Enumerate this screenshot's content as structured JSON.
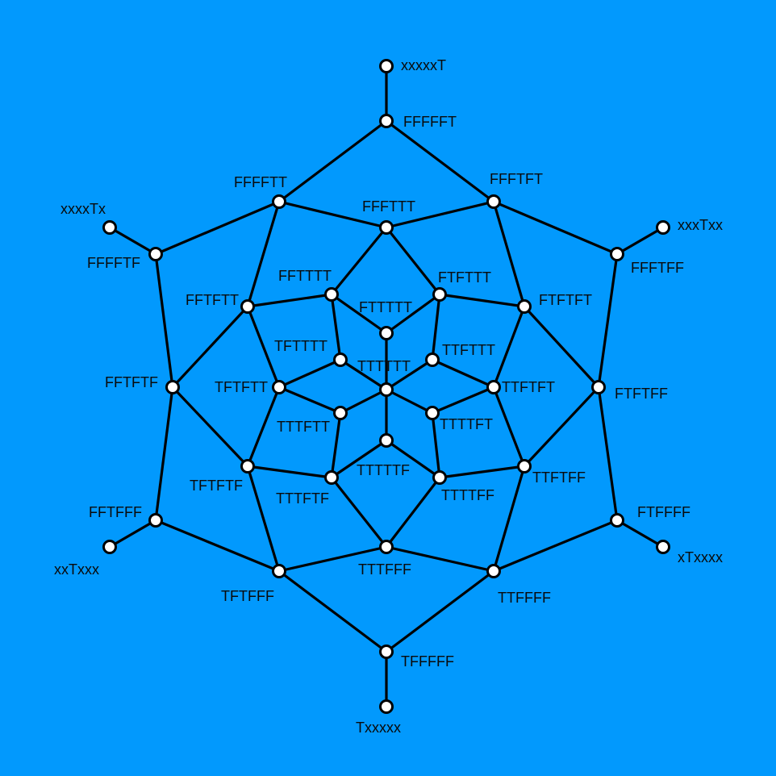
{
  "background_color": "#0299fd",
  "nodes": [
    "xxxxxT",
    "FFFFFT",
    "FFFFTT",
    "FFFTFT",
    "xxxxTx",
    "FFFFTF",
    "xxxTxx",
    "FFFTFF",
    "FFFTTT",
    "FFTTTT",
    "FTFTTT",
    "FFTFTT",
    "FTFTFT",
    "FTTTTT",
    "TFTTTT",
    "TTFTTT",
    "FFTFTF",
    "TFTFTT",
    "TTTTTT",
    "TTFTFT",
    "FTFTFF",
    "TTTFTT",
    "TTTTFT",
    "TTTTTF",
    "TFTFTF",
    "TTTFTF",
    "TTTTFF",
    "TTFTFF",
    "FFTFFF",
    "FTFFFF",
    "xxTxxx",
    "xTxxxx",
    "TTTFFF",
    "TFTFFF",
    "TTFFFF",
    "TFFFFF",
    "Txxxxx"
  ],
  "edges": [
    [
      "xxxxxT",
      "FFFFFT"
    ],
    [
      "FFFFFT",
      "FFFFTT"
    ],
    [
      "FFFFFT",
      "FFFTFT"
    ],
    [
      "FFFFTT",
      "FFFFTF"
    ],
    [
      "FFFFTF",
      "xxxxTx"
    ],
    [
      "FFFFTT",
      "FFFTTT"
    ],
    [
      "FFFTTT",
      "FFFTFT"
    ],
    [
      "FFFTFT",
      "FFFTFF"
    ],
    [
      "FFFTFF",
      "xxxTxx"
    ],
    [
      "FFFFTT",
      "FFTFTT"
    ],
    [
      "FFFTFT",
      "FTFTFT"
    ],
    [
      "FFFTTT",
      "FFTTTT"
    ],
    [
      "FFFTTT",
      "FTFTTT"
    ],
    [
      "FFTTTT",
      "FTTTTT"
    ],
    [
      "FTFTTT",
      "FTTTTT"
    ],
    [
      "FTTTTT",
      "TTTTTT"
    ],
    [
      "FFTTTT",
      "FFTFTT"
    ],
    [
      "FTFTTT",
      "FTFTFT"
    ],
    [
      "FFTTTT",
      "TFTTTT"
    ],
    [
      "FTFTTT",
      "TTFTTT"
    ],
    [
      "TFTTTT",
      "TTTTTT"
    ],
    [
      "TTFTTT",
      "TTTTTT"
    ],
    [
      "TFTTTT",
      "TFTFTT"
    ],
    [
      "TTFTTT",
      "TTFTFT"
    ],
    [
      "FFTFTT",
      "TFTFTT"
    ],
    [
      "FTFTFT",
      "TTFTFT"
    ],
    [
      "FFTFTT",
      "FFTFTF"
    ],
    [
      "FTFTFT",
      "FTFTFF"
    ],
    [
      "FFFFTF",
      "FFTFTF"
    ],
    [
      "FFFTFF",
      "FTFTFF"
    ],
    [
      "FFTFTF",
      "FFTFFF"
    ],
    [
      "FTFTFF",
      "FTFFFF"
    ],
    [
      "FFTFTF",
      "TFTFTF"
    ],
    [
      "FTFTFF",
      "TTFTFF"
    ],
    [
      "TFTFTT",
      "TTTFTT"
    ],
    [
      "TTFTFT",
      "TTTTFT"
    ],
    [
      "TTTFTT",
      "TTTTTT"
    ],
    [
      "TTTTFT",
      "TTTTTT"
    ],
    [
      "TTTFTT",
      "TTTFTF"
    ],
    [
      "TTTTFT",
      "TTTTFF"
    ],
    [
      "TFTFTT",
      "TFTFTF"
    ],
    [
      "TTFTFT",
      "TTFTFF"
    ],
    [
      "TTTTTT",
      "TTTTTF"
    ],
    [
      "TTTTTF",
      "TTTFTF"
    ],
    [
      "TTTTTF",
      "TTTTFF"
    ],
    [
      "TFTFTF",
      "TTTFTF"
    ],
    [
      "TTFTFF",
      "TTTTFF"
    ],
    [
      "TTTFTF",
      "TTTFFF"
    ],
    [
      "TTTTFF",
      "TTTFFF"
    ],
    [
      "TFTFTF",
      "TFTFFF"
    ],
    [
      "TTFTFF",
      "TTFFFF"
    ],
    [
      "FFTFFF",
      "xxTxxx"
    ],
    [
      "FTFFFF",
      "xTxxxx"
    ],
    [
      "FFTFFF",
      "TFTFFF"
    ],
    [
      "FTFFFF",
      "TTFFFF"
    ],
    [
      "TFTFFF",
      "TTTFFF"
    ],
    [
      "TTFFFF",
      "TTTFFF"
    ],
    [
      "TFTFFF",
      "TFFFFF"
    ],
    [
      "TTFFFF",
      "TFFFFF"
    ],
    [
      "TFFFFF",
      "Txxxxx"
    ]
  ]
}
